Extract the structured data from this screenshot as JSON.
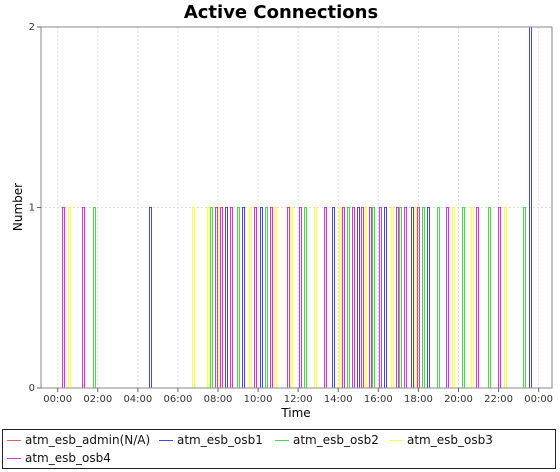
{
  "chart_data": {
    "type": "line",
    "title": "Active Connections",
    "xlabel": "Time",
    "ylabel": "Number",
    "x_ticks": [
      "00:00",
      "02:00",
      "04:00",
      "06:00",
      "08:00",
      "10:00",
      "12:00",
      "14:00",
      "16:00",
      "18:00",
      "20:00",
      "22:00",
      "00:00"
    ],
    "y_ticks": [
      "0",
      "1",
      "2"
    ],
    "xlim": [
      "23:10",
      "00:40"
    ],
    "ylim": [
      0,
      2
    ],
    "grid": true,
    "legend_position": "bottom",
    "series": [
      {
        "name": "atm_esb_admin(N/A)",
        "color": "#ff5555",
        "spikes": []
      },
      {
        "name": "atm_esb_osb1",
        "color": "#4444ff",
        "spikes": [
          {
            "x": "04:35",
            "y": 1
          },
          {
            "x": "08:25",
            "y": 1
          },
          {
            "x": "09:15",
            "y": 1
          },
          {
            "x": "10:10",
            "y": 1
          },
          {
            "x": "13:45",
            "y": 1
          },
          {
            "x": "15:00",
            "y": 1
          },
          {
            "x": "16:20",
            "y": 1
          },
          {
            "x": "17:40",
            "y": 1
          },
          {
            "x": "18:30",
            "y": 1
          },
          {
            "x": "23:35",
            "y": 2
          }
        ]
      },
      {
        "name": "atm_esb_osb2",
        "color": "#44dd44",
        "spikes": [
          {
            "x": "01:50",
            "y": 1
          },
          {
            "x": "07:40",
            "y": 1
          },
          {
            "x": "09:00",
            "y": 1
          },
          {
            "x": "10:25",
            "y": 1
          },
          {
            "x": "12:20",
            "y": 1
          },
          {
            "x": "14:30",
            "y": 1
          },
          {
            "x": "15:45",
            "y": 1
          },
          {
            "x": "17:05",
            "y": 1
          },
          {
            "x": "18:15",
            "y": 1
          },
          {
            "x": "19:00",
            "y": 1
          },
          {
            "x": "20:15",
            "y": 1
          },
          {
            "x": "21:30",
            "y": 1
          },
          {
            "x": "23:15",
            "y": 1
          }
        ]
      },
      {
        "name": "atm_esb_osb3",
        "color": "#ffff44",
        "spikes": [
          {
            "x": "00:35",
            "y": 1
          },
          {
            "x": "06:45",
            "y": 1
          },
          {
            "x": "07:30",
            "y": 1
          },
          {
            "x": "08:00",
            "y": 1
          },
          {
            "x": "09:35",
            "y": 1
          },
          {
            "x": "10:50",
            "y": 1
          },
          {
            "x": "11:40",
            "y": 1
          },
          {
            "x": "12:50",
            "y": 1
          },
          {
            "x": "14:05",
            "y": 1
          },
          {
            "x": "15:20",
            "y": 1
          },
          {
            "x": "16:40",
            "y": 1
          },
          {
            "x": "17:50",
            "y": 1
          },
          {
            "x": "19:45",
            "y": 1
          },
          {
            "x": "20:40",
            "y": 1
          },
          {
            "x": "22:20",
            "y": 1
          }
        ]
      },
      {
        "name": "atm_esb_osb4",
        "color": "#dd33dd",
        "spikes": [
          {
            "x": "00:15",
            "y": 1
          },
          {
            "x": "01:15",
            "y": 1
          },
          {
            "x": "07:55",
            "y": 1
          },
          {
            "x": "08:10",
            "y": 1
          },
          {
            "x": "08:40",
            "y": 1
          },
          {
            "x": "09:50",
            "y": 1
          },
          {
            "x": "10:40",
            "y": 1
          },
          {
            "x": "11:30",
            "y": 1
          },
          {
            "x": "12:05",
            "y": 1
          },
          {
            "x": "13:20",
            "y": 1
          },
          {
            "x": "14:15",
            "y": 1
          },
          {
            "x": "14:45",
            "y": 1
          },
          {
            "x": "15:10",
            "y": 1
          },
          {
            "x": "15:35",
            "y": 1
          },
          {
            "x": "16:05",
            "y": 1
          },
          {
            "x": "16:55",
            "y": 1
          },
          {
            "x": "17:20",
            "y": 1
          },
          {
            "x": "18:00",
            "y": 1
          },
          {
            "x": "19:25",
            "y": 1
          },
          {
            "x": "20:55",
            "y": 1
          },
          {
            "x": "22:00",
            "y": 1
          }
        ]
      }
    ]
  }
}
